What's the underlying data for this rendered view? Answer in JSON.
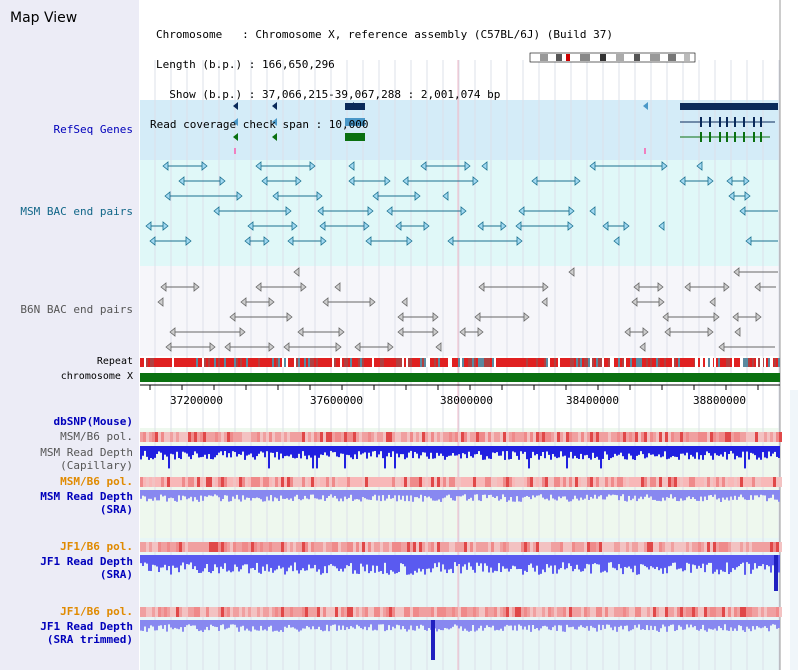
{
  "header": {
    "title": "Map View",
    "chromosome_line": "Chromosome   : Chromosome X, reference assembly (C57BL/6J) (Build 37)",
    "length_line": "Length (b.p.) : 166,650,296",
    "show_line": "  Show (b.p.) : 37,066,215-39,067,288 : 2,001,074 bp",
    "coverage_line": "Read coverage check span : 10,000"
  },
  "tracks": {
    "refseq": "RefSeq Genes",
    "msm_bac": "MSM BAC end pairs",
    "b6n_bac": "B6N BAC end pairs",
    "repeat": "Repeat",
    "chromosome": "chromosome X",
    "dbsnp": "dbSNP(Mouse)",
    "msm_b6_pol_1": "MSM/B6 pol.",
    "msm_read_depth_cap_1": "MSM Read Depth",
    "msm_read_depth_cap_2": "(Capillary)",
    "msm_b6_pol_2": "MSM/B6 pol.",
    "msm_read_depth_sra_1": "MSM Read Depth",
    "msm_read_depth_sra_2": "(SRA)",
    "jf1_b6_pol_1": "JF1/B6 pol.",
    "jf1_read_depth_sra_1": "JF1 Read Depth",
    "jf1_read_depth_sra_2": "(SRA)",
    "jf1_b6_pol_2": "JF1/B6 pol.",
    "jf1_read_depth_trim_1": "JF1 Read Depth",
    "jf1_read_depth_trim_2": "(SRA trimmed)"
  },
  "axis": {
    "ticks": [
      "37200000",
      "37600000",
      "38000000",
      "38400000",
      "38800000"
    ]
  },
  "colors": {
    "left_panel": "#ececf6",
    "refseq_bg": "#d4ecf8",
    "msm_bg": "#e0f8f8",
    "b6n_bg": "#f6f6fa",
    "gene_dark": "#0a2a5a",
    "gene_mid": "#4a98c8",
    "gene_green": "#0a7010",
    "repeat_red": "#e02020",
    "chrom_green": "#0a7010",
    "pol": "#f0a0a0",
    "depth_cap": "#2020e0",
    "depth_sra": "#8888f0"
  }
}
